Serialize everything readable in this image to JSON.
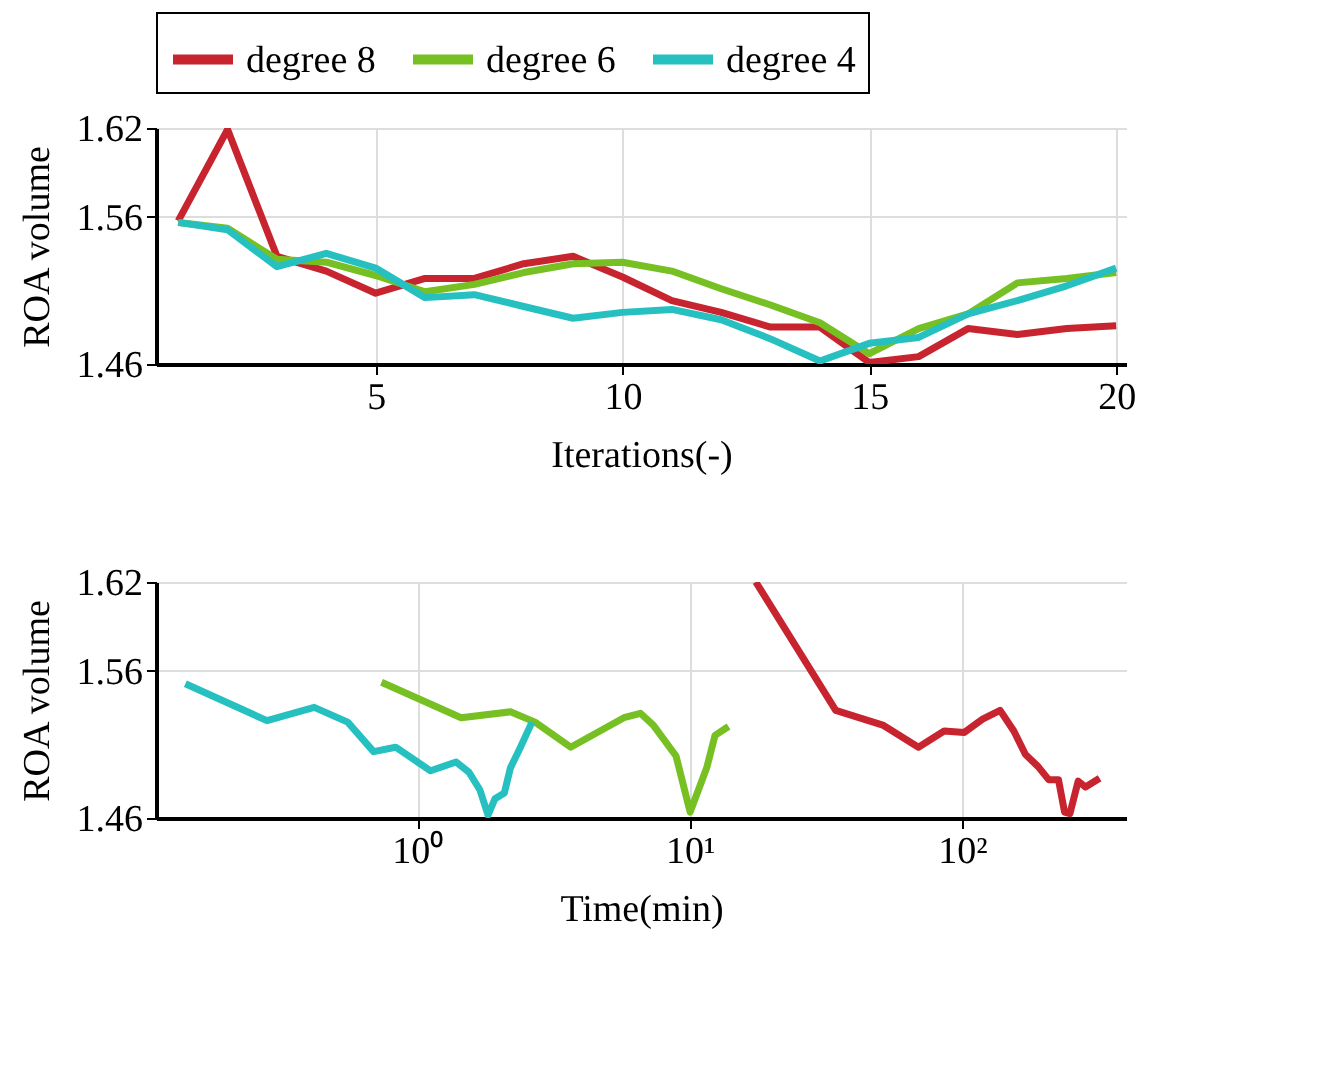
{
  "chart_data": [
    {
      "type": "line",
      "xlabel": "Iterations(-)",
      "ylabel": "ROA volume",
      "x": [
        1,
        2,
        3,
        4,
        5,
        6,
        7,
        8,
        9,
        10,
        11,
        12,
        13,
        14,
        15,
        16,
        17,
        18,
        19,
        20
      ],
      "series": [
        {
          "name": "degree 8",
          "color": "#c8242f",
          "values": [
            1.557,
            1.619,
            1.533,
            1.523,
            1.508,
            1.518,
            1.518,
            1.528,
            1.533,
            1.519,
            1.503,
            1.495,
            1.485,
            1.485,
            1.461,
            1.465,
            1.484,
            1.48,
            1.484,
            1.486
          ]
        },
        {
          "name": "degree 6",
          "color": "#77c023",
          "values": [
            1.556,
            1.552,
            1.531,
            1.529,
            1.52,
            1.509,
            1.514,
            1.522,
            1.528,
            1.529,
            1.523,
            1.511,
            1.5,
            1.488,
            1.467,
            1.484,
            1.494,
            1.515,
            1.518,
            1.522
          ]
        },
        {
          "name": "degree 4",
          "color": "#26c0c0",
          "values": [
            1.556,
            1.551,
            1.526,
            1.535,
            1.525,
            1.505,
            1.507,
            1.499,
            1.491,
            1.495,
            1.497,
            1.49,
            1.477,
            1.462,
            1.474,
            1.478,
            1.494,
            1.503,
            1.513,
            1.525
          ]
        }
      ],
      "xlim": [
        0.55,
        20.2
      ],
      "xticks": [
        5,
        10,
        15,
        20
      ],
      "ylim": [
        1.46,
        1.62
      ],
      "yticks": [
        1.46,
        1.56,
        1.62
      ],
      "grid": true,
      "legend": "top",
      "marker": "none",
      "line_style": "solid"
    },
    {
      "type": "line",
      "xlabel": "Time(min)",
      "ylabel": "ROA volume",
      "series": [
        {
          "color": "#c8242f",
          "x": [
            17.5,
            34.4,
            51.2,
            69.2,
            86.0,
            102,
            119,
            138,
            155,
            171,
            190,
            208,
            226,
            238,
            249,
            267,
            284,
            320
          ],
          "values": [
            1.62,
            1.533,
            1.523,
            1.508,
            1.519,
            1.518,
            1.527,
            1.533,
            1.519,
            1.503,
            1.495,
            1.486,
            1.486,
            1.464,
            1.463,
            1.485,
            1.481,
            1.487
          ]
        },
        {
          "color": "#77c023",
          "x": [
            0.74,
            1.45,
            2.2,
            2.71,
            3.66,
            5.74,
            6.6,
            7.36,
            8.92,
            10.05,
            11.56,
            12.4,
            13.9
          ],
          "values": [
            1.552,
            1.528,
            1.532,
            1.525,
            1.508,
            1.528,
            1.531,
            1.523,
            1.502,
            1.464,
            1.494,
            1.516,
            1.522
          ]
        },
        {
          "color": "#26c0c0",
          "x": [
            0.141,
            0.281,
            0.419,
            0.556,
            0.692,
            0.834,
            1.12,
            1.39,
            1.55,
            1.7,
            1.82,
            1.93,
            2.09,
            2.2,
            2.38,
            2.64
          ],
          "values": [
            1.551,
            1.526,
            1.535,
            1.525,
            1.505,
            1.508,
            1.492,
            1.498,
            1.491,
            1.479,
            1.462,
            1.473,
            1.477,
            1.494,
            1.507,
            1.525
          ]
        }
      ],
      "xlim": [
        0.11,
        400
      ],
      "xticks": [
        {
          "value": 1,
          "label": "10⁰"
        },
        {
          "value": 10,
          "label": "10¹"
        },
        {
          "value": 100,
          "label": "10²"
        }
      ],
      "ylim": [
        1.46,
        1.62
      ],
      "yticks": [
        1.46,
        1.56,
        1.62
      ],
      "log": "x",
      "grid": true,
      "legend": false,
      "marker": "none",
      "line_style": "solid"
    }
  ]
}
